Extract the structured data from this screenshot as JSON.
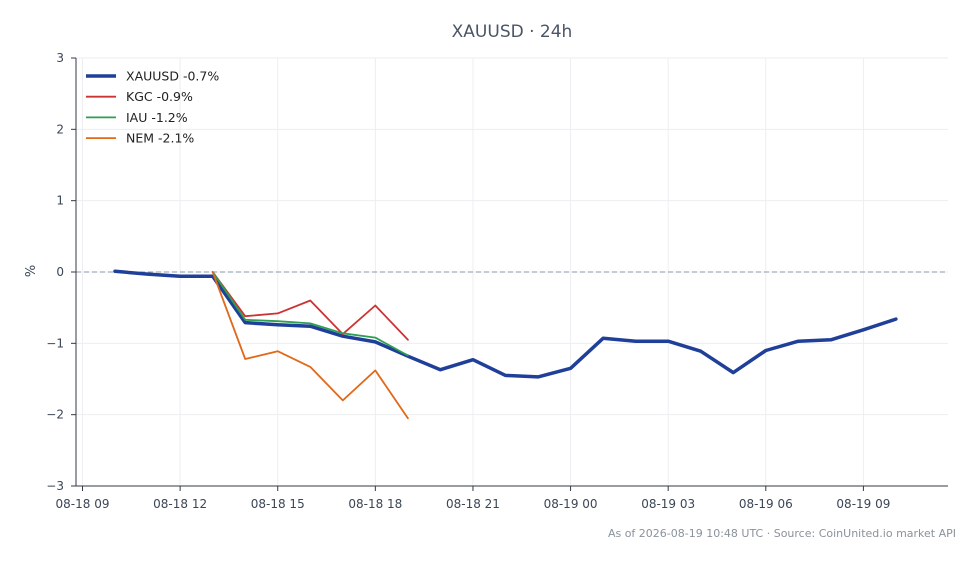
{
  "chart_data": {
    "type": "line",
    "title": "XAUUSD · 24h",
    "ylabel": "%",
    "xlabel": "",
    "ylim": [
      -3,
      3
    ],
    "yticks": [
      -3,
      -2,
      -1,
      0,
      1,
      2,
      3
    ],
    "xlim": [
      -0.2,
      26.6
    ],
    "xticks": [
      {
        "x": 0,
        "label": "08-18 09"
      },
      {
        "x": 3,
        "label": "08-18 12"
      },
      {
        "x": 6,
        "label": "08-18 15"
      },
      {
        "x": 9,
        "label": "08-18 18"
      },
      {
        "x": 12,
        "label": "08-18 21"
      },
      {
        "x": 15,
        "label": "08-19 00"
      },
      {
        "x": 18,
        "label": "08-19 03"
      },
      {
        "x": 21,
        "label": "08-19 06"
      },
      {
        "x": 24,
        "label": "08-19 09"
      }
    ],
    "grid": true,
    "reference_line": 0,
    "legend_position": "top-left",
    "series": [
      {
        "name": "XAUUSD -0.7%",
        "color": "#1f3f99",
        "width": 3.5,
        "x": [
          1,
          2,
          3,
          4,
          5,
          6,
          7,
          8,
          9,
          10,
          11,
          12,
          13,
          14,
          15,
          16,
          17,
          18,
          19,
          20,
          21,
          22,
          23,
          24,
          25
        ],
        "y": [
          0.01,
          -0.03,
          -0.06,
          -0.06,
          -0.71,
          -0.74,
          -0.76,
          -0.9,
          -0.98,
          -1.18,
          -1.37,
          -1.23,
          -1.45,
          -1.47,
          -1.35,
          -0.93,
          -0.97,
          -0.97,
          -1.11,
          -1.41,
          -1.1,
          -0.97,
          -0.95,
          -0.81,
          -0.66
        ]
      },
      {
        "name": "KGC -0.9%",
        "color": "#cc3333",
        "width": 1.8,
        "x": [
          4,
          5,
          6,
          7,
          8,
          9,
          10
        ],
        "y": [
          0.0,
          -0.62,
          -0.58,
          -0.4,
          -0.87,
          -0.47,
          -0.95
        ]
      },
      {
        "name": "IAU -1.2%",
        "color": "#2ca050",
        "width": 1.8,
        "x": [
          4,
          5,
          6,
          7,
          8,
          9,
          10
        ],
        "y": [
          0.0,
          -0.67,
          -0.69,
          -0.72,
          -0.86,
          -0.92,
          -1.17
        ]
      },
      {
        "name": "NEM -2.1%",
        "color": "#e0691a",
        "width": 1.8,
        "x": [
          4,
          5,
          6,
          7,
          8,
          9,
          10
        ],
        "y": [
          0.0,
          -1.22,
          -1.11,
          -1.33,
          -1.8,
          -1.38,
          -2.05
        ]
      }
    ]
  },
  "footer": "As of 2026-08-19 10:48 UTC · Source: CoinUnited.io market API"
}
